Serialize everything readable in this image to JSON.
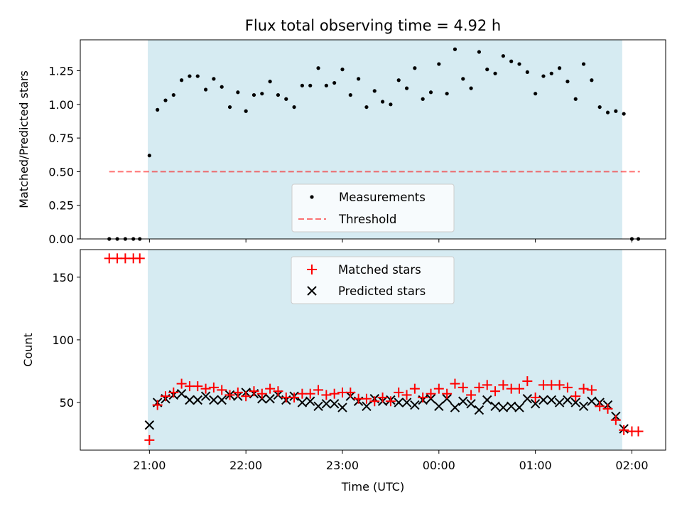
{
  "chart_data": [
    {
      "type": "scatter",
      "title": "Flux total observing time = 4.92 h",
      "ylabel": "Matched/Predicted stars",
      "ylim": [
        0.0,
        1.48
      ],
      "yticks": [
        0.0,
        0.25,
        0.5,
        0.75,
        1.0,
        1.25
      ],
      "ytick_labels": [
        "0.00",
        "0.25",
        "0.50",
        "0.75",
        "1.00",
        "1.25"
      ],
      "xlim": [
        "20:17",
        "02:21"
      ],
      "observing_window": [
        "20:59",
        "01:54"
      ],
      "colors": {
        "observing_window": "#add8e6",
        "measurements": "#000000",
        "threshold": "#ff0000"
      },
      "legend": {
        "position": "bottom-center",
        "entries": [
          "Measurements",
          "Threshold"
        ]
      },
      "threshold": {
        "name": "Threshold",
        "y": 0.5,
        "x_range": [
          "20:35",
          "02:05"
        ]
      },
      "series": [
        {
          "name": "Measurements",
          "x": [
            "20:35",
            "20:40",
            "20:45",
            "20:50",
            "20:54",
            "21:00",
            "21:05",
            "21:10",
            "21:15",
            "21:20",
            "21:25",
            "21:30",
            "21:35",
            "21:40",
            "21:45",
            "21:50",
            "21:55",
            "22:00",
            "22:05",
            "22:10",
            "22:15",
            "22:20",
            "22:25",
            "22:30",
            "22:35",
            "22:40",
            "22:45",
            "22:50",
            "22:55",
            "23:00",
            "23:05",
            "23:10",
            "23:15",
            "23:20",
            "23:25",
            "23:30",
            "23:35",
            "23:40",
            "23:45",
            "23:50",
            "23:55",
            "00:00",
            "00:05",
            "00:10",
            "00:15",
            "00:20",
            "00:25",
            "00:30",
            "00:35",
            "00:40",
            "00:45",
            "00:50",
            "00:55",
            "01:00",
            "01:05",
            "01:10",
            "01:15",
            "01:20",
            "01:25",
            "01:30",
            "01:35",
            "01:40",
            "01:45",
            "01:50",
            "01:55",
            "02:00",
            "02:04"
          ],
          "y": [
            0.0,
            0.0,
            0.0,
            0.0,
            0.0,
            0.62,
            0.96,
            1.03,
            1.07,
            1.18,
            1.21,
            1.21,
            1.11,
            1.19,
            1.13,
            0.98,
            1.09,
            0.95,
            1.07,
            1.08,
            1.17,
            1.07,
            1.04,
            0.98,
            1.14,
            1.14,
            1.27,
            1.14,
            1.16,
            1.26,
            1.07,
            1.19,
            0.98,
            1.1,
            1.02,
            1.0,
            1.18,
            1.12,
            1.27,
            1.04,
            1.09,
            1.3,
            1.08,
            1.41,
            1.19,
            1.12,
            1.39,
            1.26,
            1.23,
            1.36,
            1.32,
            1.3,
            1.24,
            1.08,
            1.21,
            1.23,
            1.27,
            1.17,
            1.04,
            1.3,
            1.18,
            0.98,
            0.94,
            0.95,
            0.93,
            0.0,
            0.0
          ]
        }
      ]
    },
    {
      "type": "scatter",
      "xlabel": "Time (UTC)",
      "ylabel": "Count",
      "ylim": [
        12,
        172
      ],
      "yticks": [
        50,
        100,
        150
      ],
      "ytick_labels": [
        "50",
        "100",
        "150"
      ],
      "xlim": [
        "20:17",
        "02:21"
      ],
      "xticks": [
        "21:00",
        "22:00",
        "23:00",
        "00:00",
        "01:00",
        "02:00"
      ],
      "observing_window": [
        "20:59",
        "01:54"
      ],
      "colors": {
        "observing_window": "#add8e6",
        "matched": "#ff0000",
        "predicted": "#000000"
      },
      "legend": {
        "position": "top-center",
        "entries": [
          "Matched stars",
          "Predicted stars"
        ]
      },
      "series": [
        {
          "name": "Matched stars",
          "marker": "plus",
          "x": [
            "20:35",
            "20:40",
            "20:45",
            "20:50",
            "20:54",
            "21:00",
            "21:05",
            "21:10",
            "21:15",
            "21:20",
            "21:25",
            "21:30",
            "21:35",
            "21:40",
            "21:45",
            "21:50",
            "21:55",
            "22:00",
            "22:05",
            "22:10",
            "22:15",
            "22:20",
            "22:25",
            "22:30",
            "22:35",
            "22:40",
            "22:45",
            "22:50",
            "22:55",
            "23:00",
            "23:05",
            "23:10",
            "23:15",
            "23:20",
            "23:25",
            "23:30",
            "23:35",
            "23:40",
            "23:45",
            "23:50",
            "23:55",
            "00:00",
            "00:05",
            "00:10",
            "00:15",
            "00:20",
            "00:25",
            "00:30",
            "00:35",
            "00:40",
            "00:45",
            "00:50",
            "00:55",
            "01:00",
            "01:05",
            "01:10",
            "01:15",
            "01:20",
            "01:25",
            "01:30",
            "01:35",
            "01:40",
            "01:45",
            "01:50",
            "01:55",
            "02:00",
            "02:04"
          ],
          "y": [
            165,
            165,
            165,
            165,
            165,
            20,
            48,
            55,
            58,
            65,
            63,
            63,
            61,
            62,
            60,
            56,
            58,
            55,
            59,
            57,
            61,
            59,
            54,
            54,
            57,
            57,
            60,
            56,
            57,
            58,
            58,
            53,
            53,
            51,
            54,
            51,
            58,
            56,
            61,
            54,
            57,
            61,
            57,
            65,
            62,
            56,
            62,
            64,
            59,
            64,
            61,
            61,
            67,
            54,
            64,
            64,
            64,
            62,
            55,
            61,
            60,
            47,
            45,
            36,
            28,
            27,
            27
          ]
        },
        {
          "name": "Predicted stars",
          "marker": "x",
          "x": [
            "21:00",
            "21:05",
            "21:10",
            "21:15",
            "21:20",
            "21:25",
            "21:30",
            "21:35",
            "21:40",
            "21:45",
            "21:50",
            "21:55",
            "22:00",
            "22:05",
            "22:10",
            "22:15",
            "22:20",
            "22:25",
            "22:30",
            "22:35",
            "22:40",
            "22:45",
            "22:50",
            "22:55",
            "23:00",
            "23:05",
            "23:10",
            "23:15",
            "23:20",
            "23:25",
            "23:30",
            "23:35",
            "23:40",
            "23:45",
            "23:50",
            "23:55",
            "00:00",
            "00:05",
            "00:10",
            "00:15",
            "00:20",
            "00:25",
            "00:30",
            "00:35",
            "00:40",
            "00:45",
            "00:50",
            "00:55",
            "01:00",
            "01:05",
            "01:10",
            "01:15",
            "01:20",
            "01:25",
            "01:30",
            "01:35",
            "01:40",
            "01:45",
            "01:50",
            "01:55"
          ],
          "y": [
            32,
            50,
            53,
            56,
            57,
            52,
            52,
            55,
            52,
            52,
            56,
            55,
            58,
            57,
            53,
            53,
            56,
            52,
            55,
            50,
            51,
            47,
            49,
            49,
            46,
            55,
            51,
            47,
            53,
            51,
            52,
            50,
            50,
            48,
            52,
            53,
            47,
            53,
            46,
            51,
            49,
            44,
            52,
            47,
            46,
            47,
            46,
            53,
            49,
            52,
            52,
            50,
            52,
            50,
            47,
            51,
            50,
            48,
            39,
            29
          ]
        }
      ]
    }
  ]
}
